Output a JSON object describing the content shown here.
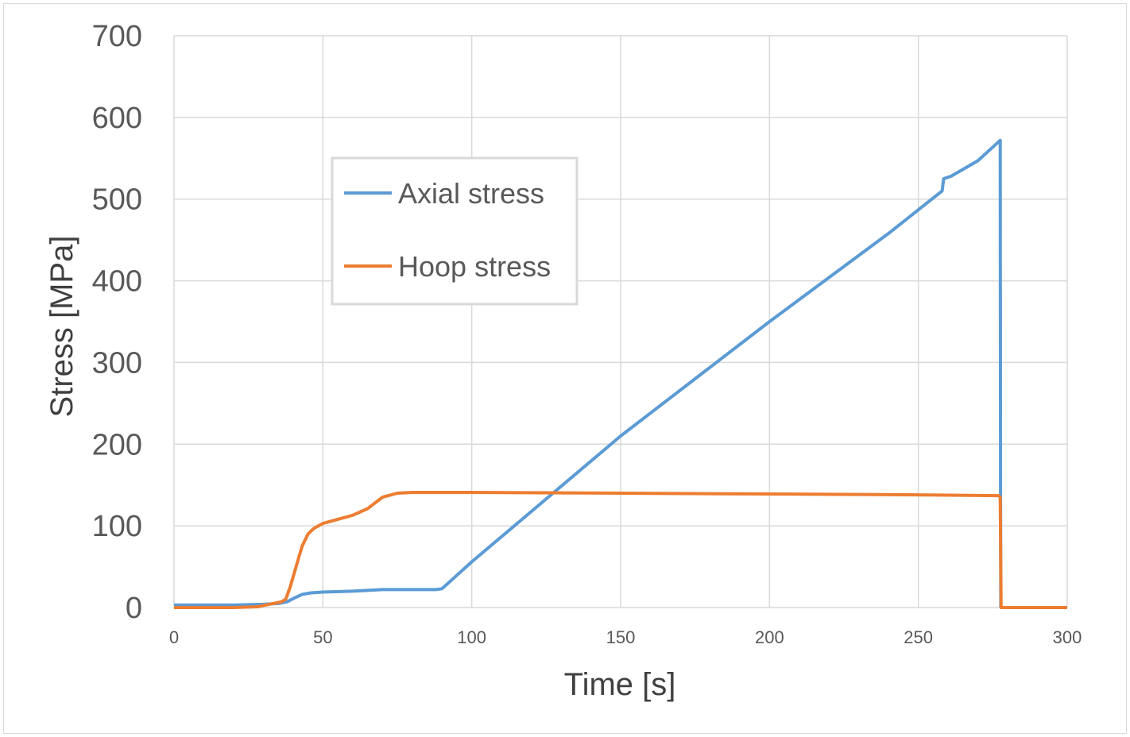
{
  "chart_data": {
    "type": "line",
    "title": "",
    "xlabel": "Time [s]",
    "ylabel": "Stress [MPa]",
    "xlim": [
      0,
      300
    ],
    "ylim": [
      0,
      700
    ],
    "x_ticks": [
      "0",
      "50",
      "100",
      "150",
      "200",
      "250",
      "300"
    ],
    "y_ticks": [
      "0",
      "100",
      "200",
      "300",
      "400",
      "500",
      "600",
      "700"
    ],
    "grid": true,
    "legend_position": "upper-left-center",
    "series": [
      {
        "name": "Axial stress",
        "color": "#5b9bd5",
        "points": [
          [
            0,
            3
          ],
          [
            10,
            3
          ],
          [
            20,
            3
          ],
          [
            30,
            4
          ],
          [
            35,
            5
          ],
          [
            38,
            7
          ],
          [
            40,
            11
          ],
          [
            43,
            16
          ],
          [
            46,
            18
          ],
          [
            50,
            19
          ],
          [
            60,
            20
          ],
          [
            70,
            22
          ],
          [
            80,
            22
          ],
          [
            88,
            22
          ],
          [
            90,
            23
          ],
          [
            100,
            56
          ],
          [
            150,
            210
          ],
          [
            200,
            350
          ],
          [
            240,
            458
          ],
          [
            258,
            510
          ],
          [
            258.5,
            525
          ],
          [
            261,
            528
          ],
          [
            270,
            547
          ],
          [
            277.5,
            572
          ],
          [
            277.6,
            138
          ],
          [
            277.7,
            0
          ]
        ]
      },
      {
        "name": "Hoop stress",
        "color": "#ed7d31",
        "points": [
          [
            0,
            0
          ],
          [
            20,
            0
          ],
          [
            28,
            1
          ],
          [
            32,
            4
          ],
          [
            36,
            7
          ],
          [
            37.5,
            10
          ],
          [
            39,
            25
          ],
          [
            41,
            50
          ],
          [
            43,
            75
          ],
          [
            45,
            90
          ],
          [
            47,
            97
          ],
          [
            50,
            103
          ],
          [
            55,
            108
          ],
          [
            60,
            113
          ],
          [
            65,
            121
          ],
          [
            70,
            135
          ],
          [
            75,
            140
          ],
          [
            80,
            141
          ],
          [
            90,
            141
          ],
          [
            100,
            141
          ],
          [
            150,
            140
          ],
          [
            200,
            139
          ],
          [
            250,
            138
          ],
          [
            277,
            137
          ],
          [
            277.5,
            135
          ],
          [
            277.8,
            0
          ],
          [
            300,
            0
          ]
        ]
      }
    ]
  }
}
